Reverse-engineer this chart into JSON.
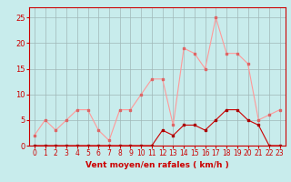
{
  "hours": [
    0,
    1,
    2,
    3,
    4,
    5,
    6,
    7,
    8,
    9,
    10,
    11,
    12,
    13,
    14,
    15,
    16,
    17,
    18,
    19,
    20,
    21,
    22,
    23
  ],
  "rafales": [
    2,
    5,
    3,
    5,
    7,
    7,
    3,
    1,
    7,
    7,
    10,
    13,
    13,
    4,
    19,
    18,
    15,
    25,
    18,
    18,
    16,
    5,
    6,
    7
  ],
  "moyen": [
    0,
    0,
    0,
    0,
    0,
    0,
    0,
    0,
    0,
    0,
    0,
    0,
    3,
    2,
    4,
    4,
    3,
    5,
    7,
    7,
    5,
    4,
    0,
    0
  ],
  "bg_color": "#c8ecec",
  "grid_color": "#a0b8b8",
  "line_color_rafales": "#ff9999",
  "line_color_moyen": "#cc0000",
  "marker_color_rafales": "#dd6666",
  "marker_color_moyen": "#aa0000",
  "xlabel": "Vent moyen/en rafales ( km/h )",
  "ylim": [
    0,
    27
  ],
  "yticks": [
    0,
    5,
    10,
    15,
    20,
    25
  ],
  "spine_color": "#cc0000",
  "axis_label_color": "#cc0000",
  "tick_label_color": "#cc0000"
}
